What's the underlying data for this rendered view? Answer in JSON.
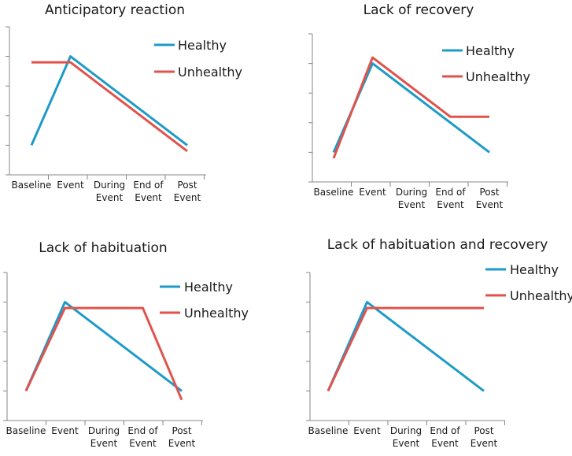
{
  "colors": {
    "healthy": "#1e9bc8",
    "unhealthy": "#e0534d",
    "axis": "#878787"
  },
  "chart_data": [
    {
      "type": "line",
      "title": "Anticipatory reaction",
      "categories": [
        "Baseline",
        "Event",
        "During Event",
        "End of Event",
        "Post Event"
      ],
      "category_lines": [
        [
          "Baseline"
        ],
        [
          "Event"
        ],
        [
          "During",
          "Event"
        ],
        [
          "End of",
          "Event"
        ],
        [
          "Post",
          "Event"
        ]
      ],
      "ylim": [
        0,
        5
      ],
      "series": [
        {
          "name": "Healthy",
          "x": [
            0,
            1,
            4
          ],
          "y": [
            1,
            4,
            1
          ]
        },
        {
          "name": "Unhealthy",
          "x": [
            0,
            1,
            4
          ],
          "y": [
            3.8,
            3.8,
            0.8
          ]
        }
      ]
    },
    {
      "type": "line",
      "title": "Lack of recovery",
      "categories": [
        "Baseline",
        "Event",
        "During Event",
        "End of Event",
        "Post Event"
      ],
      "category_lines": [
        [
          "Baseline"
        ],
        [
          "Event"
        ],
        [
          "During",
          "Event"
        ],
        [
          "End of",
          "Event"
        ],
        [
          "Post",
          "Event"
        ]
      ],
      "ylim": [
        0,
        5
      ],
      "series": [
        {
          "name": "Healthy",
          "x": [
            0,
            1,
            4
          ],
          "y": [
            1,
            4,
            1
          ]
        },
        {
          "name": "Unhealthy",
          "x": [
            0,
            1,
            3,
            4
          ],
          "y": [
            0.8,
            4.2,
            2.2,
            2.2
          ]
        }
      ]
    },
    {
      "type": "line",
      "title": "Lack of habituation",
      "categories": [
        "Baseline",
        "Event",
        "During Event",
        "End of Event",
        "Post Event"
      ],
      "category_lines": [
        [
          "Baseline"
        ],
        [
          "Event"
        ],
        [
          "During",
          "Event"
        ],
        [
          "End of",
          "Event"
        ],
        [
          "Post",
          "Event"
        ]
      ],
      "ylim": [
        0,
        5
      ],
      "series": [
        {
          "name": "Healthy",
          "x": [
            0,
            1,
            4
          ],
          "y": [
            1,
            4,
            1
          ]
        },
        {
          "name": "Unhealthy",
          "x": [
            0,
            1,
            3,
            4
          ],
          "y": [
            1,
            3.8,
            3.8,
            0.7
          ]
        }
      ]
    },
    {
      "type": "line",
      "title": "Lack of habituation and recovery",
      "categories": [
        "Baseline",
        "Event",
        "During Event",
        "End of Event",
        "Post Event"
      ],
      "category_lines": [
        [
          "Baseline"
        ],
        [
          "Event"
        ],
        [
          "During",
          "Event"
        ],
        [
          "End of",
          "Event"
        ],
        [
          "Post",
          "Event"
        ]
      ],
      "ylim": [
        0,
        5
      ],
      "series": [
        {
          "name": "Healthy",
          "x": [
            0,
            1,
            4
          ],
          "y": [
            1,
            4,
            1
          ]
        },
        {
          "name": "Unhealthy",
          "x": [
            0,
            1,
            4
          ],
          "y": [
            1,
            3.8,
            3.8
          ]
        }
      ]
    }
  ]
}
